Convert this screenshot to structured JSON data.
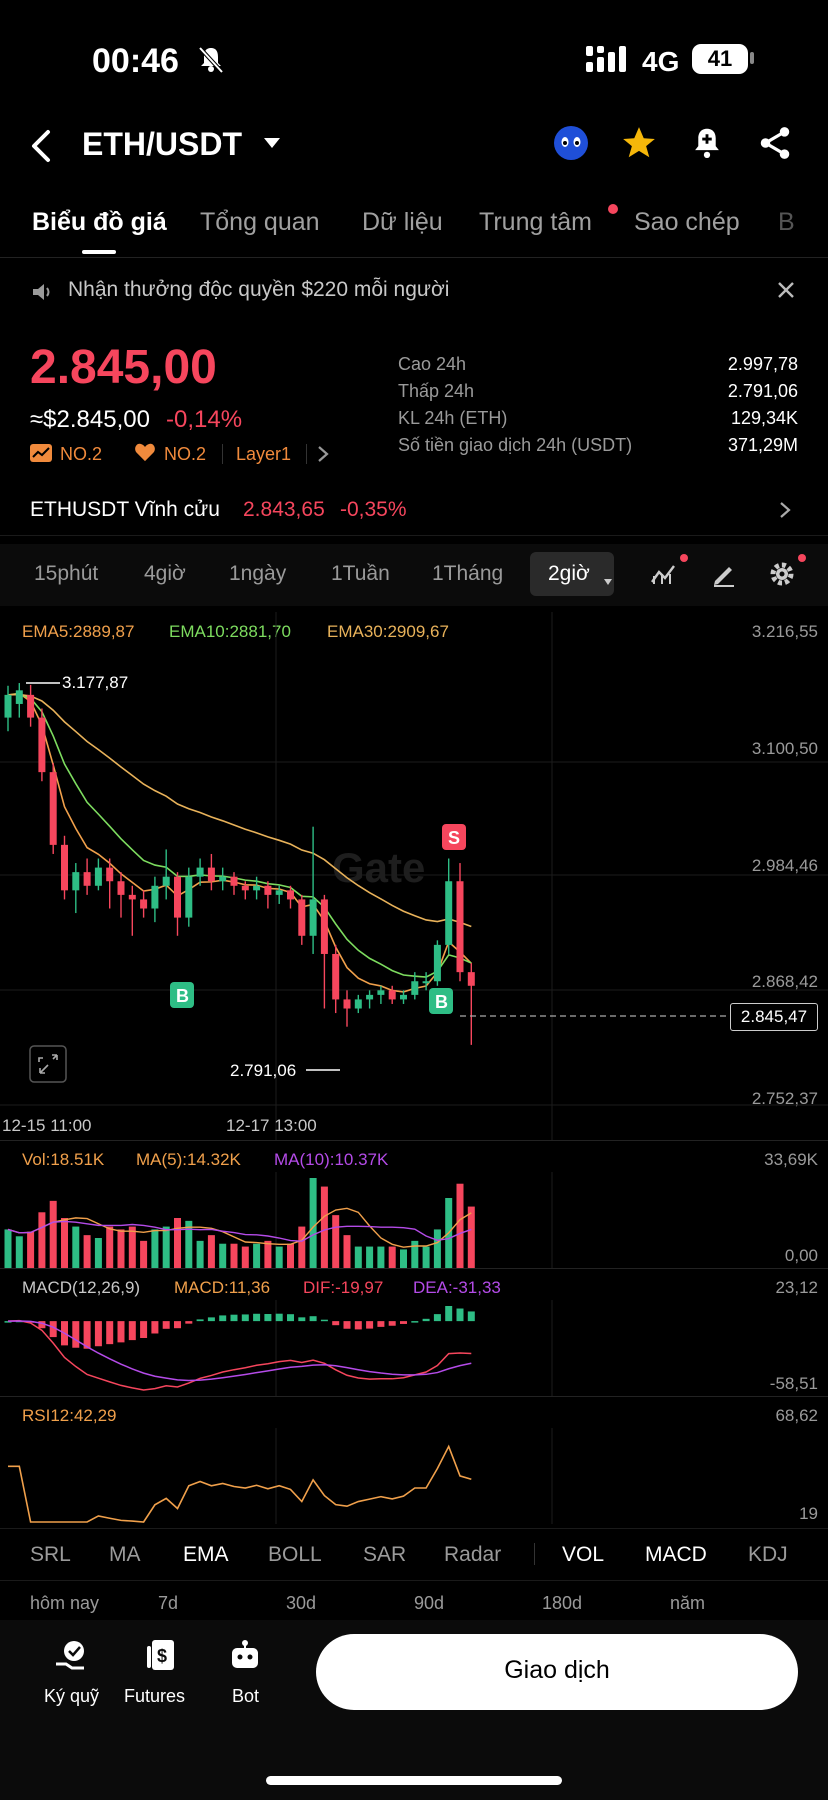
{
  "status": {
    "time": "00:46",
    "network": "4G",
    "battery": "41"
  },
  "header": {
    "pair": "ETH/USDT"
  },
  "tabs": [
    {
      "label": "Biểu đồ giá",
      "active": true
    },
    {
      "label": "Tổng quan"
    },
    {
      "label": "Dữ liệu"
    },
    {
      "label": "Trung tâm",
      "dot": true
    },
    {
      "label": "Sao chép"
    },
    {
      "label": "B"
    }
  ],
  "promo": {
    "text": "Nhận thưởng độc quyền $220 mỗi người"
  },
  "price": {
    "last": "2.845,00",
    "usd": "≈$2.845,00",
    "change": "-0,14%",
    "badges": [
      "NO.2",
      "NO.2",
      "Layer1"
    ]
  },
  "stats": [
    {
      "label": "Cao 24h",
      "value": "2.997,78"
    },
    {
      "label": "Thấp 24h",
      "value": "2.791,06"
    },
    {
      "label": "KL 24h (ETH)",
      "value": "129,34K"
    },
    {
      "label": "Số tiền giao dịch 24h (USDT)",
      "value": "371,29M"
    }
  ],
  "perp": {
    "label": "ETHUSDT Vĩnh cửu",
    "price": "2.843,65",
    "change": "-0,35%"
  },
  "intervals": [
    "15phút",
    "4giờ",
    "1ngày",
    "1Tuần",
    "1Tháng",
    "2giờ"
  ],
  "ema": {
    "e5": "EMA5:2889,87",
    "e10": "EMA10:2881,70",
    "e30": "EMA30:2909,67"
  },
  "chart_data": {
    "type": "candlestick",
    "price_axis": [
      "3.216,55",
      "3.100,50",
      "2.984,46",
      "2.868,42",
      "2.752,37"
    ],
    "current_price_label": "2.845,47",
    "high_label": "3.177,87",
    "low_label": "2.791,06",
    "time_labels": [
      "12-15 11:00",
      "12-17 13:00"
    ],
    "markers": [
      "B",
      "B",
      "S"
    ],
    "candles": [
      [
        3140,
        3165,
        3125,
        3175
      ],
      [
        3155,
        3170,
        3140,
        3178
      ],
      [
        3165,
        3140,
        3130,
        3176
      ],
      [
        3140,
        3080,
        3070,
        3150
      ],
      [
        3080,
        3000,
        2990,
        3090
      ],
      [
        3000,
        2950,
        2940,
        3010
      ],
      [
        2950,
        2970,
        2925,
        2980
      ],
      [
        2970,
        2955,
        2945,
        2985
      ],
      [
        2955,
        2975,
        2950,
        2985
      ],
      [
        2975,
        2960,
        2930,
        2985
      ],
      [
        2960,
        2945,
        2920,
        2970
      ],
      [
        2945,
        2940,
        2900,
        2955
      ],
      [
        2940,
        2930,
        2920,
        2950
      ],
      [
        2930,
        2955,
        2915,
        2965
      ],
      [
        2955,
        2965,
        2940,
        2995
      ],
      [
        2965,
        2920,
        2900,
        2970
      ],
      [
        2920,
        2965,
        2910,
        2975
      ],
      [
        2965,
        2975,
        2955,
        2985
      ],
      [
        2975,
        2960,
        2950,
        2990
      ],
      [
        2960,
        2965,
        2950,
        2975
      ],
      [
        2965,
        2955,
        2945,
        2970
      ],
      [
        2955,
        2950,
        2940,
        2960
      ],
      [
        2950,
        2955,
        2940,
        2965
      ],
      [
        2955,
        2945,
        2930,
        2960
      ],
      [
        2945,
        2950,
        2935,
        2955
      ],
      [
        2950,
        2940,
        2930,
        2955
      ],
      [
        2940,
        2900,
        2890,
        2945
      ],
      [
        2900,
        2940,
        2880,
        3020
      ],
      [
        2940,
        2880,
        2820,
        2945
      ],
      [
        2880,
        2830,
        2815,
        2890
      ],
      [
        2830,
        2820,
        2800,
        2840
      ],
      [
        2820,
        2830,
        2815,
        2835
      ],
      [
        2830,
        2835,
        2820,
        2840
      ],
      [
        2835,
        2840,
        2825,
        2845
      ],
      [
        2840,
        2830,
        2825,
        2845
      ],
      [
        2830,
        2835,
        2825,
        2840
      ],
      [
        2835,
        2850,
        2830,
        2860
      ],
      [
        2850,
        2850,
        2840,
        2860
      ],
      [
        2850,
        2890,
        2845,
        2895
      ],
      [
        2890,
        2960,
        2880,
        2985
      ],
      [
        2960,
        2860,
        2850,
        2980
      ],
      [
        2860,
        2845,
        2780,
        2870
      ]
    ],
    "volume": {
      "label": "Vol:18.51K",
      "ma5": "MA(5):14.32K",
      "ma10": "MA(10):10.37K",
      "max": "33,69K",
      "min": "0,00"
    },
    "macd": {
      "label": "MACD(12,26,9)",
      "macd": "MACD:11,36",
      "dif": "DIF:-19,97",
      "dea": "DEA:-31,33",
      "max": "23,12",
      "min": "-58,51"
    },
    "rsi": {
      "label": "RSI12:42,29",
      "max": "68,62",
      "min": "19"
    }
  },
  "indicators": [
    "SRL",
    "MA",
    "EMA",
    "BOLL",
    "SAR",
    "Radar",
    "VOL",
    "MACD",
    "KDJ"
  ],
  "ranges": [
    "hôm nay",
    "7d",
    "30d",
    "90d",
    "180d",
    "năm"
  ],
  "bottom": {
    "items": [
      {
        "label": "Ký quỹ"
      },
      {
        "label": "Futures"
      },
      {
        "label": "Bot"
      }
    ],
    "trade_label": "Giao dịch"
  },
  "colors": {
    "up": "#2ebd85",
    "down": "#f6465d",
    "ema5": "#f0a04b",
    "ema10": "#7ddc5f",
    "ema30": "#e8b25a",
    "purple": "#b44be8"
  }
}
